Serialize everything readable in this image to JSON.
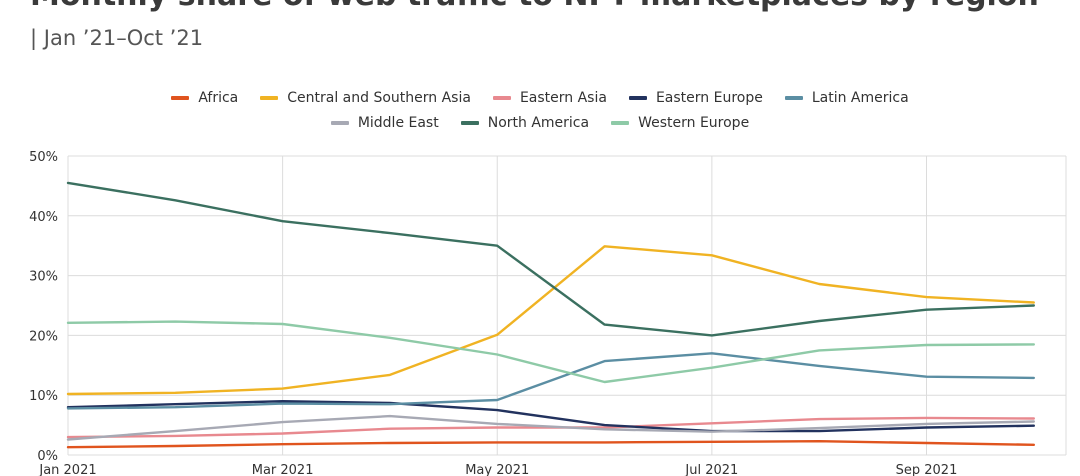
{
  "header": {
    "title": "Monthly share of web traffic to NFT marketplaces by region",
    "subtitle": "| Jan ’21–Oct ’21"
  },
  "chart_data": {
    "type": "line",
    "title": "Monthly share of web traffic to NFT marketplaces by region",
    "subtitle": "| Jan ’21–Oct ’21",
    "x": [
      "2021-01",
      "2021-02",
      "2021-03",
      "2021-04",
      "2021-05",
      "2021-06",
      "2021-07",
      "2021-08",
      "2021-09",
      "2021-10"
    ],
    "x_tick_labels": [
      {
        "x": "2021-01",
        "label": "Jan 2021"
      },
      {
        "x": "2021-03",
        "label": "Mar 2021"
      },
      {
        "x": "2021-05",
        "label": "May 2021"
      },
      {
        "x": "2021-07",
        "label": "Jul 2021"
      },
      {
        "x": "2021-09",
        "label": "Sep 2021"
      }
    ],
    "y_tick_labels": [
      "0%",
      "10%",
      "20%",
      "30%",
      "40%",
      "50%"
    ],
    "ylim": [
      0,
      50
    ],
    "y_unit": "%",
    "grid": true,
    "legend_position": "top-center",
    "series": [
      {
        "name": "Africa",
        "color": "#e0541e",
        "values": [
          1.3,
          1.5,
          1.8,
          2.0,
          2.1,
          2.1,
          2.2,
          2.3,
          2.0,
          1.7
        ]
      },
      {
        "name": "Central and Southern Asia",
        "color": "#f0b323",
        "values": [
          10.2,
          10.4,
          11.1,
          13.4,
          20.1,
          34.9,
          33.4,
          28.6,
          26.4,
          25.5
        ]
      },
      {
        "name": "Eastern Asia",
        "color": "#e8898f",
        "values": [
          3.0,
          3.2,
          3.6,
          4.4,
          4.6,
          4.6,
          5.3,
          6.0,
          6.2,
          6.1
        ]
      },
      {
        "name": "Eastern Europe",
        "color": "#22325e",
        "values": [
          8.0,
          8.5,
          9.0,
          8.7,
          7.5,
          5.0,
          4.0,
          4.0,
          4.6,
          4.9
        ]
      },
      {
        "name": "Latin America",
        "color": "#5b8ea3",
        "values": [
          7.8,
          8.0,
          8.6,
          8.5,
          9.2,
          15.7,
          17.0,
          14.9,
          13.1,
          12.9
        ]
      },
      {
        "name": "Middle East",
        "color": "#a7a9b4",
        "values": [
          2.6,
          4.0,
          5.5,
          6.5,
          5.2,
          4.3,
          3.9,
          4.5,
          5.2,
          5.6
        ]
      },
      {
        "name": "North America",
        "color": "#3b7060",
        "values": [
          45.5,
          42.6,
          39.1,
          37.1,
          35.0,
          21.8,
          20.0,
          22.4,
          24.3,
          25.0
        ]
      },
      {
        "name": "Western Europe",
        "color": "#8ecaa7",
        "values": [
          22.1,
          22.3,
          21.9,
          19.6,
          16.8,
          12.2,
          14.6,
          17.5,
          18.4,
          18.5
        ]
      }
    ]
  }
}
